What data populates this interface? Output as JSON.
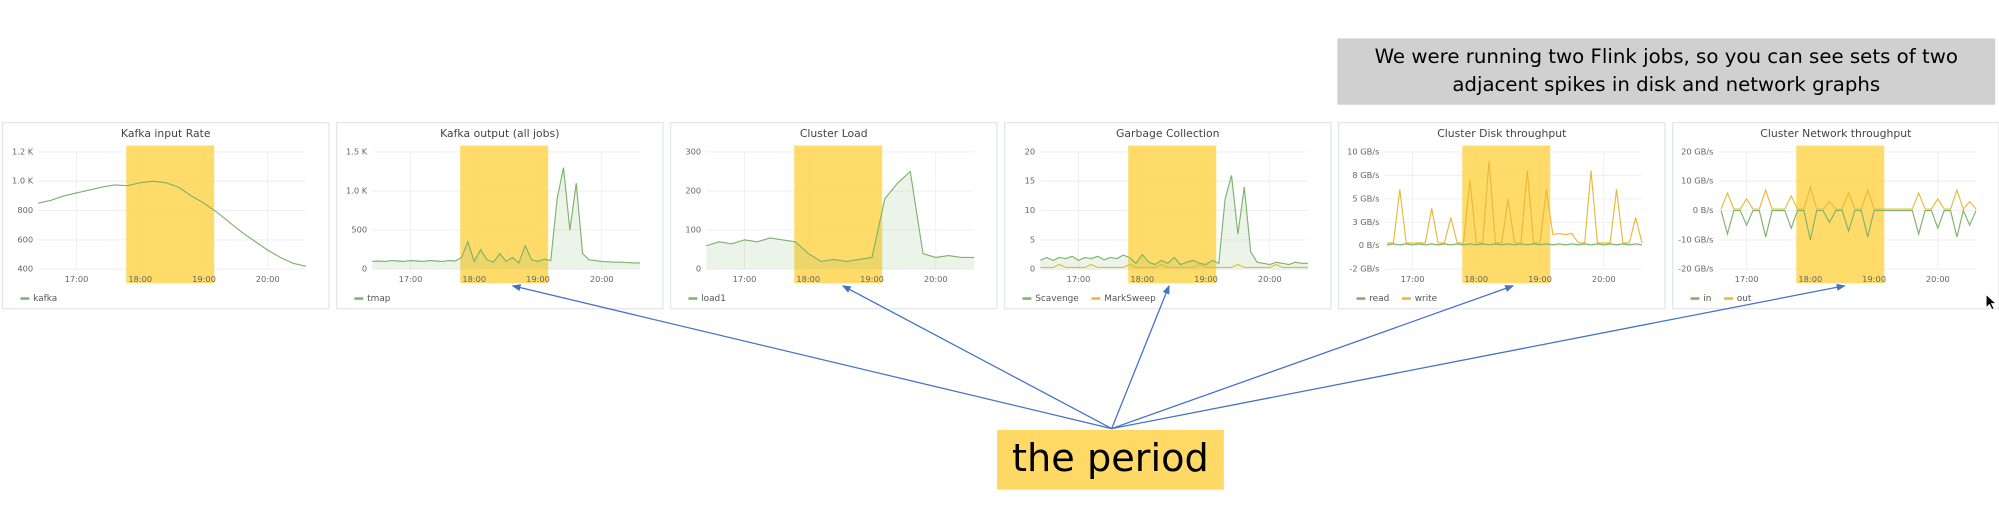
{
  "annotations": {
    "note_lines": [
      "We were running two Flink jobs, so you can see sets of two",
      "adjacent spikes in disk and network graphs"
    ],
    "label": "the period"
  },
  "chart_data": [
    {
      "type": "line",
      "title": "Kafka input Rate",
      "xlim": [
        16.4,
        20.6
      ],
      "ylim": [
        400,
        1200
      ],
      "highlight": [
        17.78,
        19.16
      ],
      "area": false,
      "xticks": [
        {
          "value": 17,
          "label": "17:00"
        },
        {
          "value": 18,
          "label": "18:00"
        },
        {
          "value": 19,
          "label": "19:00"
        },
        {
          "value": 20,
          "label": "20:00"
        }
      ],
      "yticks": [
        400,
        600,
        800,
        {
          "value": 1000,
          "label": "1.0 K"
        },
        {
          "value": 1200,
          "label": "1.2 K"
        }
      ],
      "x": [
        16.4,
        16.6,
        16.8,
        17.0,
        17.2,
        17.4,
        17.6,
        17.8,
        18.0,
        18.2,
        18.4,
        18.6,
        18.8,
        19.0,
        19.2,
        19.4,
        19.6,
        19.8,
        20.0,
        20.2,
        20.4,
        20.6
      ],
      "series": [
        {
          "name": "kafka",
          "color": "#7eb26d",
          "values": [
            850,
            870,
            900,
            920,
            940,
            960,
            975,
            970,
            990,
            1000,
            990,
            960,
            900,
            850,
            790,
            720,
            650,
            590,
            530,
            480,
            440,
            420
          ]
        }
      ]
    },
    {
      "type": "line",
      "title": "Kafka output (all jobs)",
      "xlim": [
        16.4,
        20.6
      ],
      "ylim": [
        0,
        1500
      ],
      "highlight": [
        17.78,
        19.16
      ],
      "area": true,
      "xticks": [
        {
          "value": 17,
          "label": "17:00"
        },
        {
          "value": 18,
          "label": "18:00"
        },
        {
          "value": 19,
          "label": "19:00"
        },
        {
          "value": 20,
          "label": "20:00"
        }
      ],
      "yticks": [
        0,
        500,
        {
          "value": 1000,
          "label": "1.0 K"
        },
        {
          "value": 1500,
          "label": "1.5 K"
        }
      ],
      "x": [
        16.4,
        16.5,
        16.6,
        16.7,
        16.8,
        16.9,
        17.0,
        17.1,
        17.2,
        17.3,
        17.4,
        17.5,
        17.6,
        17.7,
        17.8,
        17.9,
        18.0,
        18.1,
        18.2,
        18.3,
        18.4,
        18.5,
        18.6,
        18.7,
        18.8,
        18.9,
        19.0,
        19.1,
        19.2,
        19.3,
        19.4,
        19.5,
        19.6,
        19.7,
        19.8,
        19.9,
        20.0,
        20.1,
        20.2,
        20.3,
        20.4,
        20.5,
        20.6
      ],
      "series": [
        {
          "name": "tmap",
          "color": "#7eb26d",
          "values": [
            100,
            105,
            100,
            110,
            105,
            100,
            110,
            105,
            100,
            110,
            105,
            100,
            110,
            105,
            150,
            350,
            100,
            250,
            120,
            90,
            200,
            100,
            150,
            80,
            300,
            120,
            100,
            130,
            110,
            900,
            1300,
            500,
            1100,
            200,
            120,
            110,
            100,
            95,
            90,
            90,
            85,
            80,
            80
          ]
        }
      ]
    },
    {
      "type": "line",
      "title": "Cluster Load",
      "xlim": [
        16.4,
        20.6
      ],
      "ylim": [
        0,
        300
      ],
      "highlight": [
        17.78,
        19.16
      ],
      "area": true,
      "xticks": [
        {
          "value": 17,
          "label": "17:00"
        },
        {
          "value": 18,
          "label": "18:00"
        },
        {
          "value": 19,
          "label": "19:00"
        },
        {
          "value": 20,
          "label": "20:00"
        }
      ],
      "yticks": [
        0,
        100,
        200,
        300
      ],
      "x": [
        16.4,
        16.6,
        16.8,
        17.0,
        17.2,
        17.4,
        17.6,
        17.8,
        18.0,
        18.2,
        18.4,
        18.6,
        18.8,
        19.0,
        19.2,
        19.4,
        19.6,
        19.8,
        20.0,
        20.2,
        20.4,
        20.6
      ],
      "series": [
        {
          "name": "load1",
          "color": "#7eb26d",
          "values": [
            60,
            70,
            65,
            75,
            70,
            80,
            75,
            70,
            40,
            20,
            25,
            20,
            25,
            30,
            180,
            220,
            250,
            40,
            30,
            35,
            30,
            30
          ]
        }
      ]
    },
    {
      "type": "line",
      "title": "Garbage Collection",
      "xlim": [
        16.4,
        20.6
      ],
      "ylim": [
        0,
        20
      ],
      "highlight": [
        17.78,
        19.16
      ],
      "area": true,
      "xticks": [
        {
          "value": 17,
          "label": "17:00"
        },
        {
          "value": 18,
          "label": "18:00"
        },
        {
          "value": 19,
          "label": "19:00"
        },
        {
          "value": 20,
          "label": "20:00"
        }
      ],
      "yticks": [
        0,
        5,
        10,
        15,
        20
      ],
      "x": [
        16.4,
        16.5,
        16.6,
        16.7,
        16.8,
        16.9,
        17.0,
        17.1,
        17.2,
        17.3,
        17.4,
        17.5,
        17.6,
        17.7,
        17.8,
        17.9,
        18.0,
        18.1,
        18.2,
        18.3,
        18.4,
        18.5,
        18.6,
        18.7,
        18.8,
        18.9,
        19.0,
        19.1,
        19.2,
        19.3,
        19.4,
        19.5,
        19.6,
        19.7,
        19.8,
        19.9,
        20.0,
        20.1,
        20.2,
        20.3,
        20.4,
        20.5,
        20.6
      ],
      "series": [
        {
          "name": "Scavenge",
          "color": "#7eb26d",
          "values": [
            1.5,
            2,
            1.5,
            2,
            1.8,
            2.2,
            1.5,
            2,
            1.8,
            2.2,
            1.6,
            2,
            1.8,
            2.4,
            2,
            1,
            2.5,
            1.2,
            0.8,
            1.5,
            1,
            2,
            0.8,
            1.2,
            1.5,
            1,
            0.8,
            1.5,
            1,
            12,
            16,
            6,
            14,
            3,
            1.2,
            1,
            0.8,
            1.2,
            1,
            0.8,
            1.2,
            1,
            1
          ]
        },
        {
          "name": "MarkSweep",
          "color": "#eab839",
          "values": [
            0.3,
            0.3,
            0.3,
            0.8,
            0.3,
            0.3,
            0.3,
            0.3,
            0.8,
            0.3,
            0.3,
            0.3,
            0.3,
            0.3,
            0.8,
            0.3,
            0.3,
            0.3,
            0.3,
            0.8,
            0.3,
            0.3,
            0.3,
            0.3,
            0.3,
            0.8,
            0.3,
            0.3,
            0.3,
            0.3,
            0.3,
            0.8,
            0.3,
            0.3,
            0.3,
            0.3,
            0.3,
            0.8,
            0.3,
            0.3,
            0.3,
            0.3,
            0.3
          ]
        }
      ]
    },
    {
      "type": "line",
      "title": "Cluster Disk throughput",
      "xlim": [
        16.56,
        20.6
      ],
      "ylim": [
        -2.5,
        10
      ],
      "highlight": [
        17.78,
        19.16
      ],
      "area": false,
      "xticks": [
        {
          "value": 17,
          "label": "17:00"
        },
        {
          "value": 18,
          "label": "18:00"
        },
        {
          "value": 19,
          "label": "19:00"
        },
        {
          "value": 20,
          "label": "20:00"
        }
      ],
      "yticks": [
        {
          "value": -2.5,
          "label": "-2 GB/s"
        },
        {
          "value": 0,
          "label": "0 B/s"
        },
        {
          "value": 2.5,
          "label": "3 GB/s"
        },
        {
          "value": 5,
          "label": "5 GB/s"
        },
        {
          "value": 7.5,
          "label": "8 GB/s"
        },
        {
          "value": 10,
          "label": "10 GB/s"
        }
      ],
      "x": [
        16.6,
        16.7,
        16.8,
        16.9,
        17.0,
        17.1,
        17.2,
        17.3,
        17.4,
        17.5,
        17.6,
        17.7,
        17.8,
        17.9,
        18.0,
        18.1,
        18.2,
        18.3,
        18.4,
        18.5,
        18.6,
        18.7,
        18.8,
        18.9,
        19.0,
        19.1,
        19.2,
        19.3,
        19.4,
        19.5,
        19.6,
        19.7,
        19.8,
        19.9,
        20.0,
        20.1,
        20.2,
        20.3,
        20.4,
        20.5,
        20.6
      ],
      "series": [
        {
          "name": "read",
          "color": "#7eb26d",
          "values": [
            0.1,
            0.2,
            0.1,
            0.2,
            0.1,
            0.2,
            0.1,
            0.2,
            0.1,
            0.2,
            0.1,
            0.2,
            0.1,
            0.2,
            0.1,
            0.2,
            0.1,
            0.2,
            0.1,
            0.2,
            0.1,
            0.2,
            0.1,
            0.2,
            0.1,
            0.2,
            0.1,
            0.2,
            0.1,
            0.2,
            0.1,
            0.2,
            0.1,
            0.2,
            0.1,
            0.2,
            0.1,
            0.2,
            0.1,
            0.2,
            0.1
          ]
        },
        {
          "name": "write",
          "color": "#eab839",
          "values": [
            0.3,
            0.3,
            6,
            0.3,
            0.3,
            0.3,
            0.3,
            4,
            0.3,
            0.3,
            3,
            0.3,
            0.3,
            7,
            0.3,
            0.3,
            9,
            0.3,
            0.3,
            5,
            0.3,
            0.3,
            8,
            0.3,
            0.3,
            6,
            1.2,
            1.3,
            1.2,
            1.3,
            0.3,
            0.3,
            8,
            0.3,
            0.3,
            0.3,
            6,
            0.3,
            0.3,
            3,
            0.3
          ]
        }
      ]
    },
    {
      "type": "line",
      "title": "Cluster Network throughput",
      "xlim": [
        16.56,
        20.6
      ],
      "ylim": [
        -20,
        20
      ],
      "highlight": [
        17.78,
        19.16
      ],
      "area": false,
      "xticks": [
        {
          "value": 17,
          "label": "17:00"
        },
        {
          "value": 18,
          "label": "18:00"
        },
        {
          "value": 19,
          "label": "19:00"
        },
        {
          "value": 20,
          "label": "20:00"
        }
      ],
      "yticks": [
        {
          "value": -20,
          "label": "-20 GB/s"
        },
        {
          "value": -10,
          "label": "-10 GB/s"
        },
        {
          "value": 0,
          "label": "0 B/s"
        },
        {
          "value": 10,
          "label": "10 GB/s"
        },
        {
          "value": 20,
          "label": "20 GB/s"
        }
      ],
      "x": [
        16.6,
        16.7,
        16.8,
        16.9,
        17.0,
        17.1,
        17.2,
        17.3,
        17.4,
        17.5,
        17.6,
        17.7,
        17.8,
        17.9,
        18.0,
        18.1,
        18.2,
        18.3,
        18.4,
        18.5,
        18.6,
        18.7,
        18.8,
        18.9,
        19.0,
        19.1,
        19.2,
        19.3,
        19.4,
        19.5,
        19.6,
        19.7,
        19.8,
        19.9,
        20.0,
        20.1,
        20.2,
        20.3,
        20.4,
        20.5,
        20.6
      ],
      "series": [
        {
          "name": "in",
          "color": "#7eb26d",
          "values": [
            0,
            -8,
            0,
            0,
            -5,
            0,
            0,
            -9,
            0,
            0,
            0,
            -6,
            0,
            0,
            -10,
            0,
            0,
            -4,
            0,
            0,
            -7,
            0,
            0,
            -9,
            0,
            0,
            0,
            0,
            0,
            0,
            0,
            -8,
            0,
            0,
            -6,
            0,
            0,
            -9,
            0,
            -5,
            0
          ]
        },
        {
          "name": "out",
          "color": "#eab839",
          "values": [
            0.5,
            6,
            0.5,
            0.5,
            4,
            0.5,
            0.5,
            7,
            0.5,
            0.5,
            0.5,
            5,
            0.5,
            0.5,
            8,
            0.5,
            0.5,
            3,
            0.5,
            0.5,
            6,
            0.5,
            0.5,
            7,
            0.5,
            0.5,
            0.5,
            0.5,
            0.5,
            0.5,
            0.5,
            6,
            0.5,
            0.5,
            4,
            0.5,
            0.5,
            7,
            0.5,
            3,
            0.5
          ]
        }
      ]
    }
  ]
}
